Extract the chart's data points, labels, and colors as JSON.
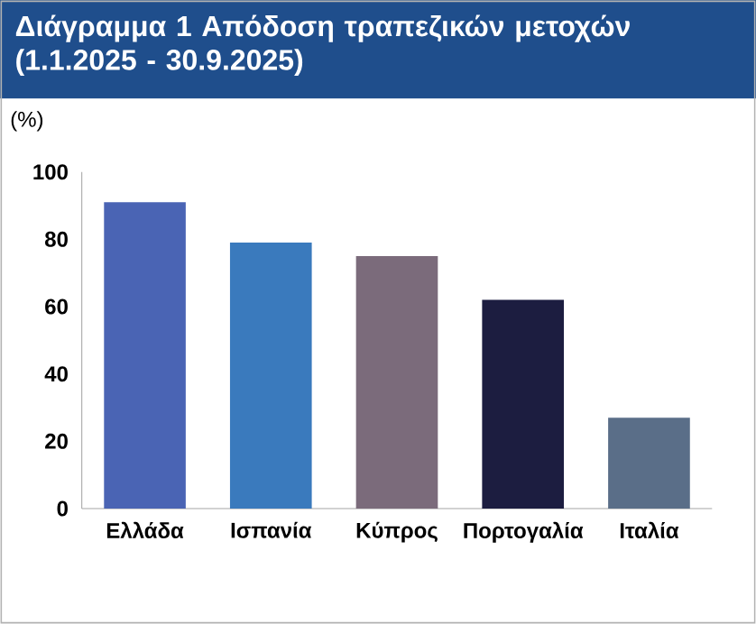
{
  "chart_data": {
    "type": "bar",
    "title": "Διάγραμμα 1 Απόδοση τραπεζικών μετοχών (1.1.2025 - 30.9.2025)",
    "ylabel": "(%)",
    "categories": [
      "Ελλάδα",
      "Ισπανία",
      "Κύπρος",
      "Πορτογαλία",
      "Ιταλία"
    ],
    "values": [
      91,
      79,
      75,
      62,
      27
    ],
    "colors": [
      "#4a64b4",
      "#3a7abd",
      "#7b6b7b",
      "#1c1d40",
      "#5a6e88"
    ],
    "ylim": [
      0,
      100
    ],
    "yticks": [
      0,
      20,
      40,
      60,
      80,
      100
    ],
    "grid": false
  }
}
